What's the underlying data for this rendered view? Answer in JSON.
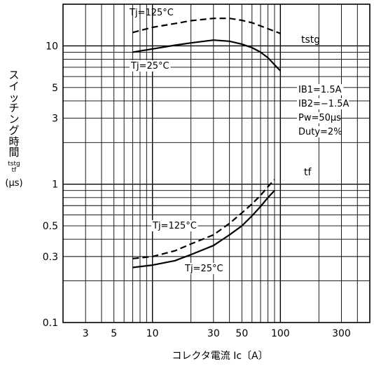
{
  "chart_data": {
    "type": "line",
    "title": "",
    "xlabel": "コレクタ電流 Ic〔A〕",
    "ylabel": {
      "chars": [
        "ス",
        "イ",
        "ッ",
        "チ",
        "ン",
        "グ",
        "時",
        "間"
      ],
      "symbols": [
        "tstg",
        "tf"
      ],
      "unit": "(μs)"
    },
    "xscale": "log",
    "yscale": "log",
    "xlim": [
      2,
      500
    ],
    "ylim": [
      0.1,
      20
    ],
    "xticks": [
      {
        "v": 3,
        "label": "3"
      },
      {
        "v": 5,
        "label": "5"
      },
      {
        "v": 10,
        "label": "10"
      },
      {
        "v": 30,
        "label": "30"
      },
      {
        "v": 50,
        "label": "50"
      },
      {
        "v": 100,
        "label": "100"
      },
      {
        "v": 300,
        "label": "300"
      }
    ],
    "yticks": [
      {
        "v": 0.1,
        "label": "0.1"
      },
      {
        "v": 0.3,
        "label": "0.3"
      },
      {
        "v": 0.5,
        "label": "0.5"
      },
      {
        "v": 1,
        "label": "1"
      },
      {
        "v": 3,
        "label": "3"
      },
      {
        "v": 5,
        "label": "5"
      },
      {
        "v": 10,
        "label": "10"
      }
    ],
    "grid": true,
    "series": [
      {
        "name": "tstg Tj=125°C",
        "style": "dashed",
        "x": [
          7,
          10,
          15,
          20,
          30,
          40,
          50,
          60,
          80,
          100
        ],
        "y": [
          12.5,
          13.6,
          14.5,
          15.2,
          15.8,
          15.8,
          15.3,
          14.7,
          13.3,
          12.3
        ]
      },
      {
        "name": "tstg Tj=25°C",
        "style": "solid",
        "x": [
          7,
          10,
          15,
          20,
          30,
          40,
          50,
          60,
          70,
          80,
          90,
          100
        ],
        "y": [
          9,
          9.5,
          10.1,
          10.5,
          11,
          10.8,
          10.3,
          9.7,
          9,
          8.2,
          7.3,
          6.6
        ]
      },
      {
        "name": "tf Tj=125°C",
        "style": "dashed",
        "x": [
          7,
          10,
          15,
          20,
          30,
          40,
          50,
          60,
          70,
          80,
          90
        ],
        "y": [
          0.29,
          0.3,
          0.33,
          0.37,
          0.43,
          0.52,
          0.62,
          0.72,
          0.83,
          0.96,
          1.08
        ]
      },
      {
        "name": "tf Tj=25°C",
        "style": "solid",
        "x": [
          7,
          10,
          15,
          20,
          30,
          40,
          50,
          60,
          70,
          80,
          90
        ],
        "y": [
          0.25,
          0.26,
          0.28,
          0.31,
          0.36,
          0.43,
          0.5,
          0.59,
          0.69,
          0.8,
          0.9
        ]
      }
    ],
    "annotations": [
      {
        "text": "Tj=125°C",
        "series": "tstg Tj=125°C"
      },
      {
        "text": "Tj=25°C",
        "series": "tstg Tj=25°C"
      },
      {
        "text": "tstg"
      },
      {
        "text": "IB1=1.5A"
      },
      {
        "text": "IB2=−1.5A"
      },
      {
        "text": "Pw=50μs"
      },
      {
        "text": "Duty=2%"
      },
      {
        "text": "tf"
      },
      {
        "text": "Tj=125°C",
        "series": "tf Tj=125°C"
      },
      {
        "text": "Tj=25°C",
        "series": "tf Tj=25°C"
      }
    ]
  }
}
